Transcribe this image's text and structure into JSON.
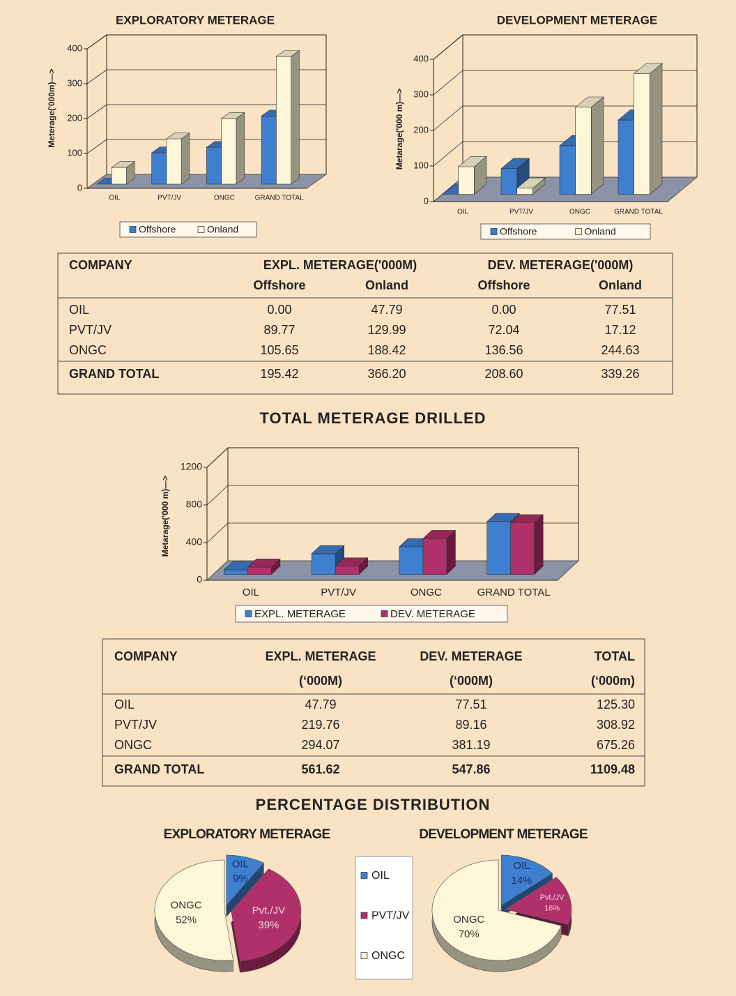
{
  "chart_data": [
    {
      "type": "bar",
      "title": "EXPLORATORY METERAGE",
      "y_label": "Meterage('000m)—>",
      "categories": [
        "OIL",
        "PVT/JV",
        "ONGC",
        "GRAND TOTAL"
      ],
      "series": [
        {
          "name": "Offshore",
          "color": "#3f7fd0",
          "values": [
            0,
            89.77,
            105.65,
            195.42
          ]
        },
        {
          "name": "Onland",
          "color": "#fdf6d8",
          "values": [
            47.79,
            129.99,
            188.42,
            366.2
          ]
        }
      ],
      "ylim": [
        0,
        400
      ],
      "yticks": [
        0,
        100,
        200,
        300,
        400
      ],
      "grid": true
    },
    {
      "type": "bar",
      "title": "DEVELOPMENT METERAGE",
      "y_label": "Metarage('000 m)—>",
      "categories": [
        "OIL",
        "PVT/JV",
        "ONGC",
        "GRAND TOTAL"
      ],
      "series": [
        {
          "name": "Offshore",
          "color": "#3f7fd0",
          "values": [
            0,
            72.04,
            136.56,
            208.6
          ]
        },
        {
          "name": "Onland",
          "color": "#fdf6d8",
          "values": [
            77.51,
            17.12,
            244.63,
            339.26
          ]
        }
      ],
      "ylim": [
        0,
        400
      ],
      "yticks": [
        0,
        100,
        200,
        300,
        400
      ],
      "grid": true
    },
    {
      "type": "bar",
      "title": "TOTAL METERAGE DRILLED",
      "y_label": "Metarage('000 m)—>",
      "categories": [
        "OIL",
        "PVT/JV",
        "ONGC",
        "GRAND TOTAL"
      ],
      "series": [
        {
          "name": "EXPL. METERAGE",
          "color": "#3f7fd0",
          "values": [
            47.79,
            219.76,
            294.07,
            561.62
          ]
        },
        {
          "name": "DEV. METERAGE",
          "color": "#b0306a",
          "values": [
            77.51,
            89.16,
            381.19,
            547.86
          ]
        }
      ],
      "ylim": [
        0,
        1200
      ],
      "yticks": [
        0,
        400,
        800,
        1200
      ],
      "grid": true
    },
    {
      "type": "pie",
      "title": "EXPLORATORY METERAGE",
      "categories": [
        "OIL",
        "Pvt./JV",
        "ONGC"
      ],
      "values": [
        9,
        39,
        52
      ],
      "value_labels": [
        "9%",
        "39%",
        "52%"
      ],
      "colors": [
        "#3f7fd0",
        "#b0306a",
        "#fdf6d8"
      ]
    },
    {
      "type": "pie",
      "title": "DEVELOPMENT METERAGE",
      "categories": [
        "OIL",
        "Pvt./JV",
        "ONGC"
      ],
      "values": [
        14,
        16,
        70
      ],
      "value_labels": [
        "14%",
        "16%",
        "70%"
      ],
      "colors": [
        "#3f7fd0",
        "#b0306a",
        "#fdf6d8"
      ]
    }
  ],
  "pie_legend": [
    {
      "name": "OIL",
      "color": "#3f7fd0"
    },
    {
      "name": "PVT/JV",
      "color": "#b0306a"
    },
    {
      "name": "ONGC",
      "color": "#fdf6d8"
    }
  ],
  "heading": "PERCENTAGE DISTRIBUTION",
  "tables": [
    {
      "header": [
        "COMPANY",
        "EXPL. METERAGE('000M)",
        "DEV. METERAGE('000M)"
      ],
      "subheader": [
        "Offshore",
        "Onland",
        "Offshore",
        "Onland"
      ],
      "rows": [
        [
          "OIL",
          "0.00",
          "47.79",
          "0.00",
          "77.51"
        ],
        [
          "PVT/JV",
          "89.77",
          "129.99",
          "72.04",
          "17.12"
        ],
        [
          "ONGC",
          "105.65",
          "188.42",
          "136.56",
          "244.63"
        ]
      ],
      "total": [
        "GRAND TOTAL",
        "195.42",
        "366.20",
        "208.60",
        "339.26"
      ]
    },
    {
      "header": [
        "COMPANY",
        "EXPL. METERAGE",
        "DEV. METERAGE",
        "TOTAL"
      ],
      "subheader": [
        "(‘000M)",
        "(‘000M)",
        "(‘000m)"
      ],
      "rows": [
        [
          "OIL",
          "47.79",
          "77.51",
          "125.30"
        ],
        [
          "PVT/JV",
          "219.76",
          "89.16",
          "308.92"
        ],
        [
          "ONGC",
          "294.07",
          "381.19",
          "675.26"
        ]
      ],
      "total": [
        "GRAND TOTAL",
        "561.62",
        "547.86",
        "1109.48"
      ]
    }
  ]
}
